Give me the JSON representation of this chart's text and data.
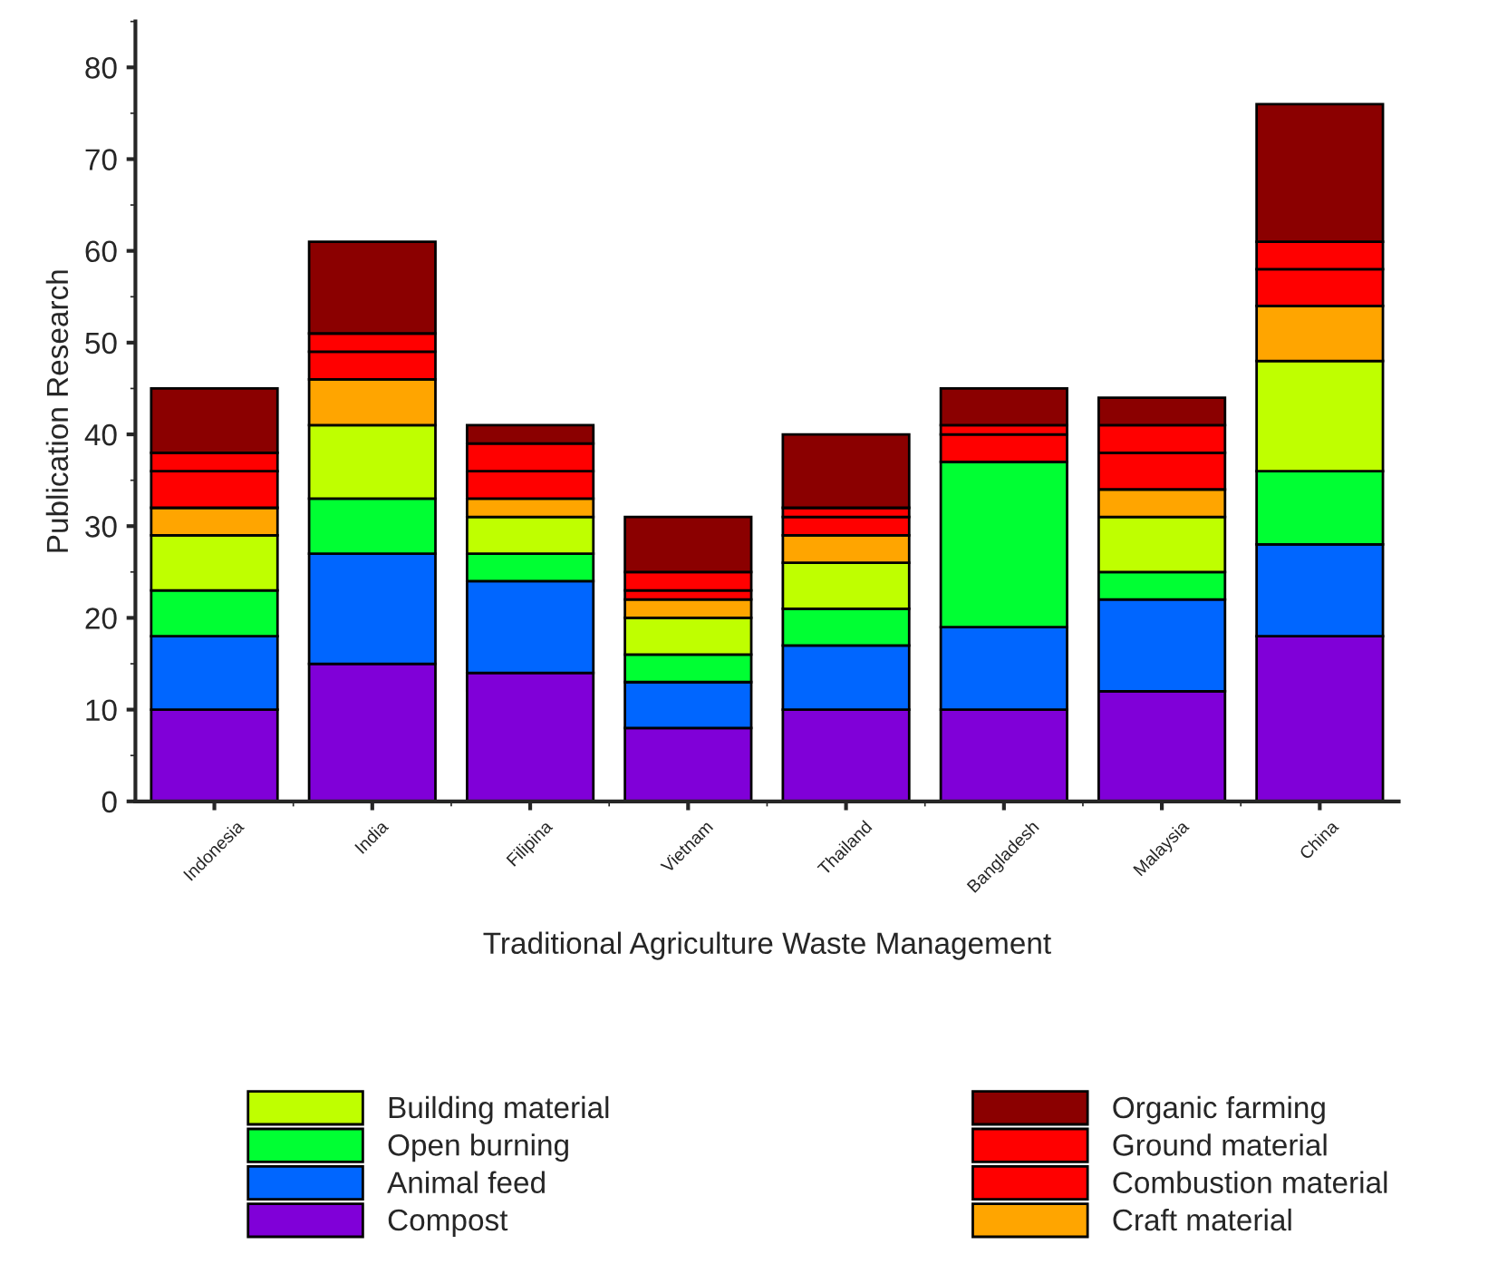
{
  "chart_data": {
    "type": "bar",
    "stacked": true,
    "xlabel": "Traditional Agriculture Waste Management",
    "ylabel": "Publication Research",
    "categories": [
      "Indonesia",
      "India",
      "Filipina",
      "Vietnam",
      "Thailand",
      "Bangladesh",
      "Malaysia",
      "China"
    ],
    "series": [
      {
        "name": "Compost",
        "color": "#8000d8",
        "values": [
          10,
          15,
          14,
          8,
          10,
          10,
          12,
          18
        ]
      },
      {
        "name": "Animal feed",
        "color": "#0066ff",
        "values": [
          8,
          12,
          10,
          5,
          7,
          9,
          10,
          10
        ]
      },
      {
        "name": "Open burning",
        "color": "#00ff33",
        "values": [
          5,
          6,
          3,
          3,
          4,
          18,
          3,
          8
        ]
      },
      {
        "name": "Building material",
        "color": "#bfff00",
        "values": [
          6,
          8,
          4,
          4,
          5,
          0,
          6,
          12
        ]
      },
      {
        "name": "Craft material",
        "color": "#ffa500",
        "values": [
          3,
          5,
          2,
          2,
          3,
          0,
          3,
          6
        ]
      },
      {
        "name": "Combustion material",
        "color": "#ff0000",
        "values": [
          4,
          3,
          3,
          1,
          2,
          3,
          4,
          4
        ]
      },
      {
        "name": "Ground material",
        "color": "#ff0000",
        "values": [
          2,
          2,
          3,
          2,
          1,
          1,
          3,
          3
        ]
      },
      {
        "name": "Organic farming",
        "color": "#8b0000",
        "values": [
          7,
          10,
          2,
          6,
          8,
          4,
          3,
          15
        ]
      }
    ],
    "ylim": [
      0,
      85
    ],
    "yticks": [
      0,
      10,
      20,
      30,
      40,
      50,
      60,
      70,
      80
    ],
    "grid": false,
    "legend": "bottom"
  }
}
